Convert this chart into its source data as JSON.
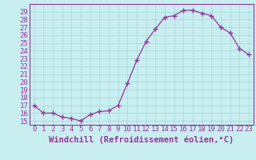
{
  "x": [
    0,
    1,
    2,
    3,
    4,
    5,
    6,
    7,
    8,
    9,
    10,
    11,
    12,
    13,
    14,
    15,
    16,
    17,
    18,
    19,
    20,
    21,
    22,
    23
  ],
  "y": [
    17.0,
    16.0,
    16.0,
    15.5,
    15.3,
    15.0,
    15.8,
    16.2,
    16.3,
    17.0,
    19.8,
    22.8,
    25.2,
    26.8,
    28.3,
    28.5,
    29.2,
    29.2,
    28.8,
    28.5,
    27.0,
    26.3,
    24.3,
    23.5
  ],
  "line_color": "#993399",
  "marker": "+",
  "marker_color": "#993399",
  "bg_color": "#c8eef0",
  "grid_color": "#aad8dc",
  "axis_color": "#993399",
  "tick_color": "#993399",
  "xlabel": "Windchill (Refroidissement éolien,°C)",
  "xlabel_color": "#993399",
  "xlim": [
    -0.5,
    23.5
  ],
  "ylim": [
    14.5,
    30.0
  ],
  "yticks": [
    15,
    16,
    17,
    18,
    19,
    20,
    21,
    22,
    23,
    24,
    25,
    26,
    27,
    28,
    29
  ],
  "xticks": [
    0,
    1,
    2,
    3,
    4,
    5,
    6,
    7,
    8,
    9,
    10,
    11,
    12,
    13,
    14,
    15,
    16,
    17,
    18,
    19,
    20,
    21,
    22,
    23
  ],
  "font_size": 6.5,
  "xlabel_fontsize": 7.5
}
